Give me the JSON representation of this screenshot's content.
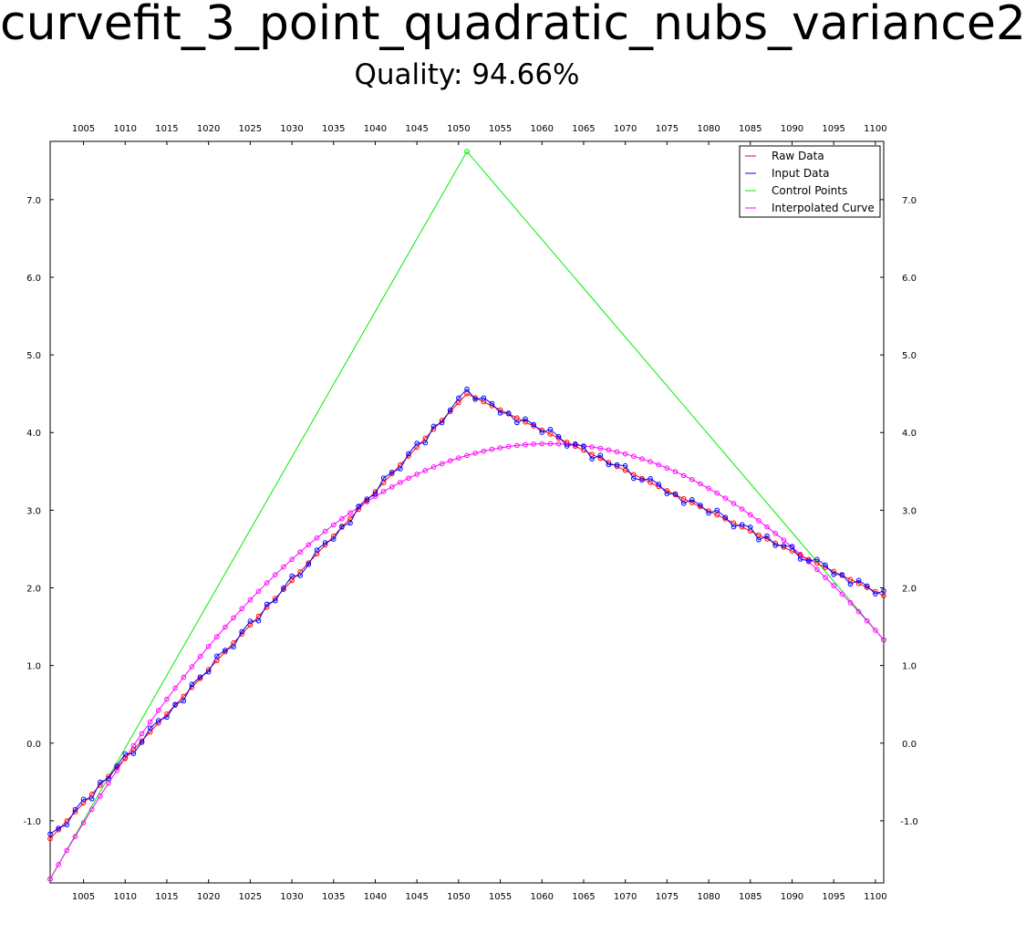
{
  "title": "curvefit_3_point_quadratic_nubs_variance2",
  "subtitle": "Quality: 94.66%",
  "chart_data": {
    "type": "line",
    "xlim": [
      1001,
      1101
    ],
    "ylim": [
      -1.8,
      7.75
    ],
    "x_ticks": [
      1005,
      1010,
      1015,
      1020,
      1025,
      1030,
      1035,
      1040,
      1045,
      1050,
      1055,
      1060,
      1065,
      1070,
      1075,
      1080,
      1085,
      1090,
      1095,
      1100
    ],
    "y_ticks": [
      -1.0,
      0.0,
      1.0,
      2.0,
      3.0,
      4.0,
      5.0,
      6.0,
      7.0
    ],
    "y_tick_labels": [
      "-1.0",
      "0.0",
      "1.0",
      "2.0",
      "3.0",
      "4.0",
      "5.0",
      "6.0",
      "7.0"
    ],
    "grid": false,
    "legend_position": "top-right",
    "colors": {
      "raw": "#ff0000",
      "input": "#0000ff",
      "control": "#00ee00",
      "curve": "#ff00ff"
    },
    "series": [
      {
        "name": "Raw Data",
        "key": "raw",
        "peak": [
          1051,
          4.5
        ],
        "left_slope": 0.1146,
        "right_slope": -0.052
      },
      {
        "name": "Input Data",
        "key": "input",
        "peak": [
          1051,
          4.56
        ],
        "offsets": [
          0.06,
          0.02,
          -0.05,
          0.03,
          0.05,
          -0.06,
          0.04,
          -0.03,
          0.02,
          0.06,
          -0.05,
          -0.02,
          0.05,
          0.03,
          -0.04,
          0.01,
          -0.06,
          0.04,
          0.02,
          -0.03
        ]
      },
      {
        "name": "Control Points",
        "key": "control",
        "x": [
          1001,
          1051,
          1101
        ],
        "y": [
          -1.75,
          7.62,
          1.33
        ]
      },
      {
        "name": "Interpolated Curve",
        "key": "curve",
        "x_range": [
          1001,
          1101
        ],
        "points": 100
      }
    ]
  }
}
